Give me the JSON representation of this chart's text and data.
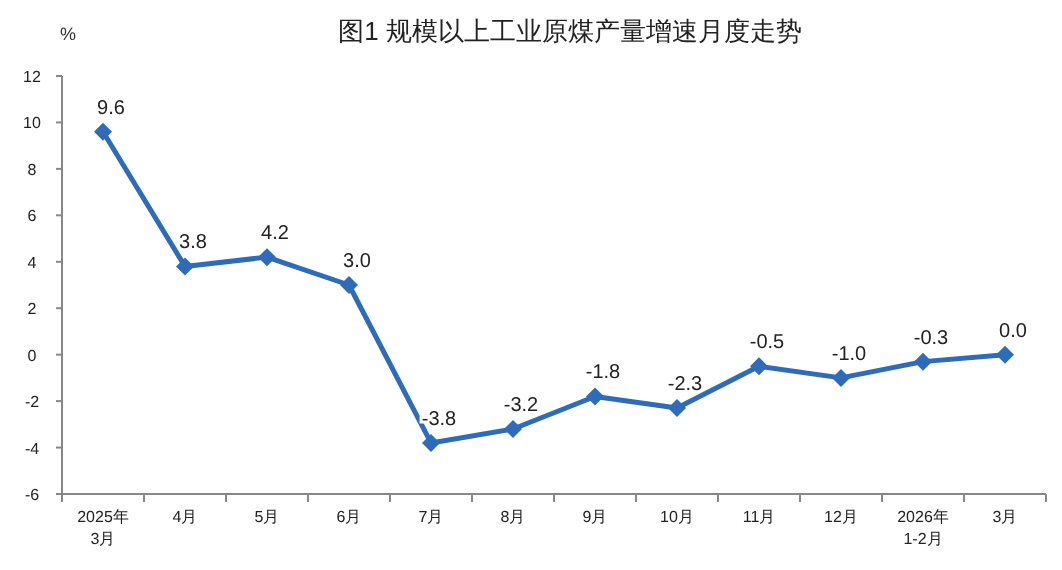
{
  "chart_data": {
    "type": "line",
    "title": "图1  规模以上工业原煤产量增速月度走势",
    "ylabel": "%",
    "categories": [
      "2025年\n3月",
      "4月",
      "5月",
      "6月",
      "7月",
      "8月",
      "9月",
      "10月",
      "11月",
      "12月",
      "2026年\n1-2月",
      "3月"
    ],
    "series": [
      {
        "color": "#2e6bb8",
        "values": [
          9.6,
          3.8,
          4.2,
          3.0,
          -3.8,
          -3.2,
          -1.8,
          -2.3,
          -0.5,
          -1.0,
          -0.3,
          0.0
        ],
        "value_labels": [
          "9.6",
          "3.8",
          "4.2",
          "3.0",
          "-3.8",
          "-3.2",
          "-1.8",
          "-2.3",
          "-0.5",
          "-1.0",
          "-0.3",
          "0.0"
        ]
      }
    ],
    "ylim": [
      -6,
      12
    ],
    "yticks": [
      -6,
      -4,
      -2,
      0,
      2,
      4,
      6,
      8,
      10,
      12
    ],
    "marker": "diamond",
    "line_style": "solid"
  }
}
